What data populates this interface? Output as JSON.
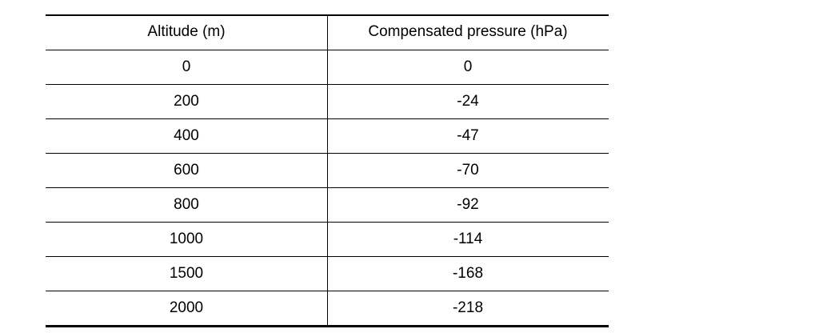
{
  "table": {
    "header": [
      "Altitude (m)",
      "Compensated pressure (hPa)"
    ],
    "rows": [
      [
        0,
        0
      ],
      [
        200,
        -24
      ],
      [
        400,
        -47
      ],
      [
        600,
        -70
      ],
      [
        800,
        -92
      ],
      [
        1000,
        -114
      ],
      [
        1500,
        -168
      ],
      [
        2000,
        -218
      ]
    ]
  }
}
